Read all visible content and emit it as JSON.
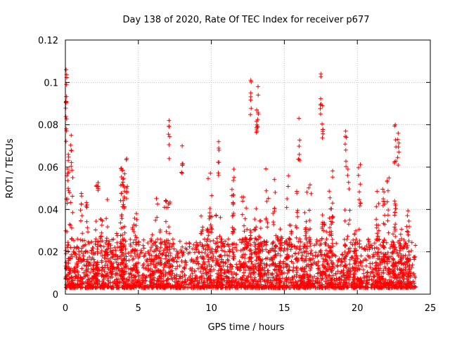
{
  "chart_data": {
    "type": "scatter",
    "title": "Day 138 of 2020, Rate Of TEC Index for receiver p677",
    "xlabel": "GPS time / hours",
    "ylabel": "ROTI / TECUs",
    "xlim": [
      0,
      25
    ],
    "ylim": [
      0,
      0.12
    ],
    "x_ticks": [
      0,
      5,
      10,
      15,
      20,
      25
    ],
    "x_tick_labels": [
      "0",
      "5",
      "10",
      "15",
      "20",
      "25"
    ],
    "y_ticks": [
      0,
      0.02,
      0.04,
      0.06,
      0.08,
      0.1,
      0.12
    ],
    "y_tick_labels": [
      "0",
      "0.02",
      "0.04",
      "0.06",
      "0.08",
      "0.1",
      "0.12"
    ],
    "grid": true,
    "marker": "+",
    "series_color": "#ff0000",
    "data_extent_hours": [
      0,
      24
    ],
    "notable_points": [
      {
        "x": 0.05,
        "y": 0.106
      },
      {
        "x": 0.05,
        "y": 0.091
      },
      {
        "x": 0.2,
        "y": 0.066
      },
      {
        "x": 0.4,
        "y": 0.075
      },
      {
        "x": 4.2,
        "y": 0.064
      },
      {
        "x": 7.1,
        "y": 0.082
      },
      {
        "x": 8.0,
        "y": 0.07
      },
      {
        "x": 10.5,
        "y": 0.072
      },
      {
        "x": 12.7,
        "y": 0.101
      },
      {
        "x": 13.2,
        "y": 0.098
      },
      {
        "x": 13.1,
        "y": 0.087
      },
      {
        "x": 16.0,
        "y": 0.083
      },
      {
        "x": 17.5,
        "y": 0.104
      },
      {
        "x": 17.6,
        "y": 0.089
      },
      {
        "x": 19.2,
        "y": 0.077
      },
      {
        "x": 22.6,
        "y": 0.08
      },
      {
        "x": 22.8,
        "y": 0.076
      }
    ],
    "typical_range": [
      0.003,
      0.045
    ]
  }
}
